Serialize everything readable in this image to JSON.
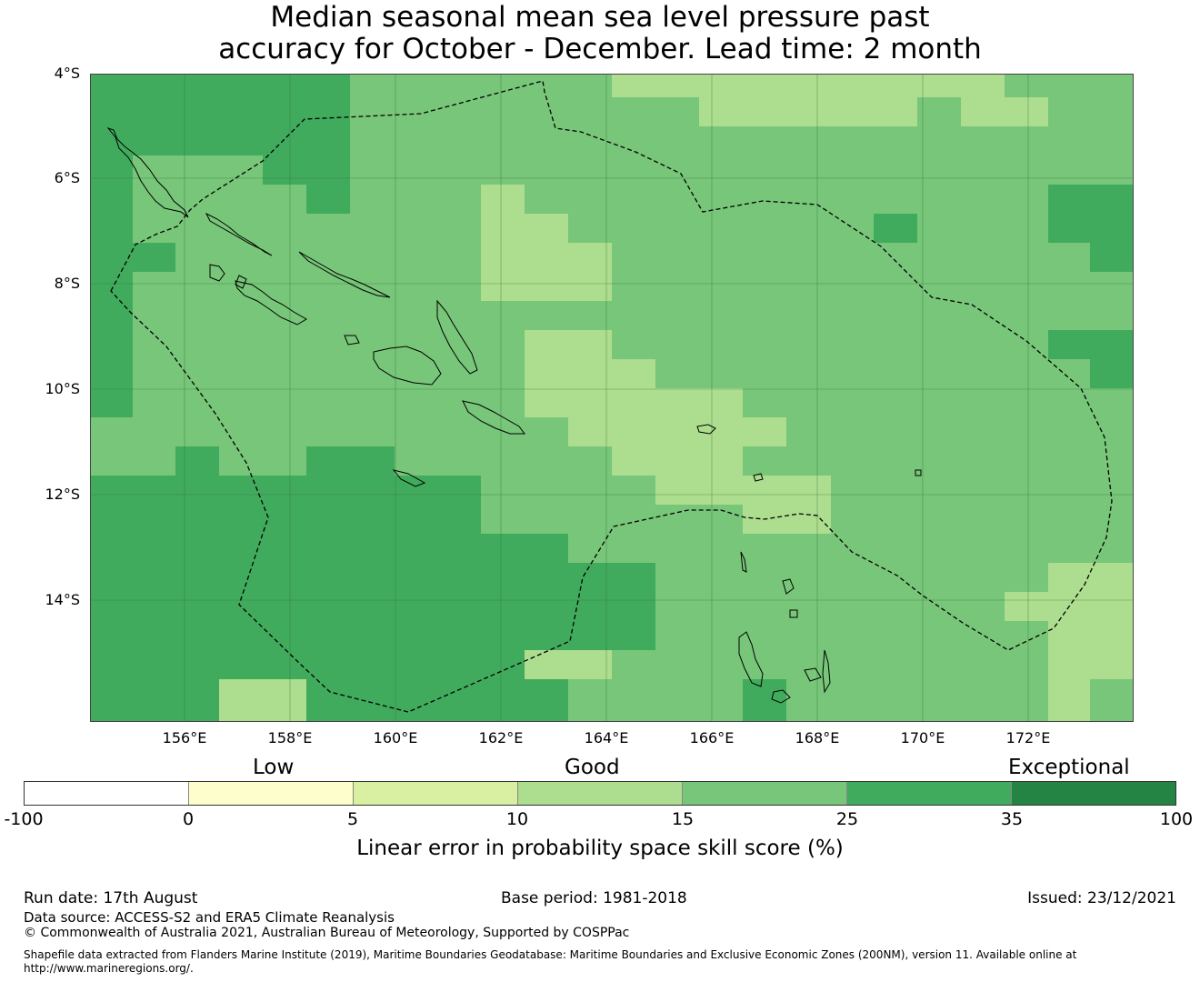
{
  "title": {
    "line1": "Median seasonal mean sea level pressure past",
    "line2": "accuracy for October - December. Lead time: 2 month"
  },
  "map": {
    "lat_labels": [
      "4°S",
      "6°S",
      "8°S",
      "10°S",
      "12°S",
      "14°S"
    ],
    "lon_labels": [
      "156°E",
      "158°E",
      "160°E",
      "162°E",
      "164°E",
      "166°E",
      "168°E",
      "170°E",
      "172°E"
    ],
    "colors": {
      "0-5": "#fefdcc",
      "5-10": "#d9f0a3",
      "10-15": "#addd8e",
      "15-25": "#78c679",
      "25-35": "#41ab5d",
      "35-100": "#238443"
    }
  },
  "colorbar": {
    "categories": [
      "Low",
      "Good",
      "Exceptional"
    ],
    "ticks": [
      "-100",
      "0",
      "5",
      "10",
      "15",
      "25",
      "35",
      "100"
    ],
    "segment_colors": [
      "#ffffff",
      "#fefdcc",
      "#d9f0a3",
      "#addd8e",
      "#78c679",
      "#41ab5d",
      "#238443"
    ],
    "label": "Linear error in probability space skill score (%)"
  },
  "footer": {
    "run_date": "Run date: 17th August",
    "base_period": "Base period: 1981-2018",
    "issued": "Issued: 23/12/2021",
    "data_source": "Data source: ACCESS-S2 and ERA5 Climate Reanalysis",
    "copyright": "© Commonwealth of Australia 2021, Australian Bureau of Meteorology, Supported by COSPPac",
    "shapefile_line1": "Shapefile data extracted from Flanders Marine Institute (2019), Maritime Boundaries Geodatabase: Maritime Boundaries and Exclusive Economic Zones (200NM), version 11. Available online at",
    "shapefile_line2": "http://www.marineregions.org/."
  }
}
